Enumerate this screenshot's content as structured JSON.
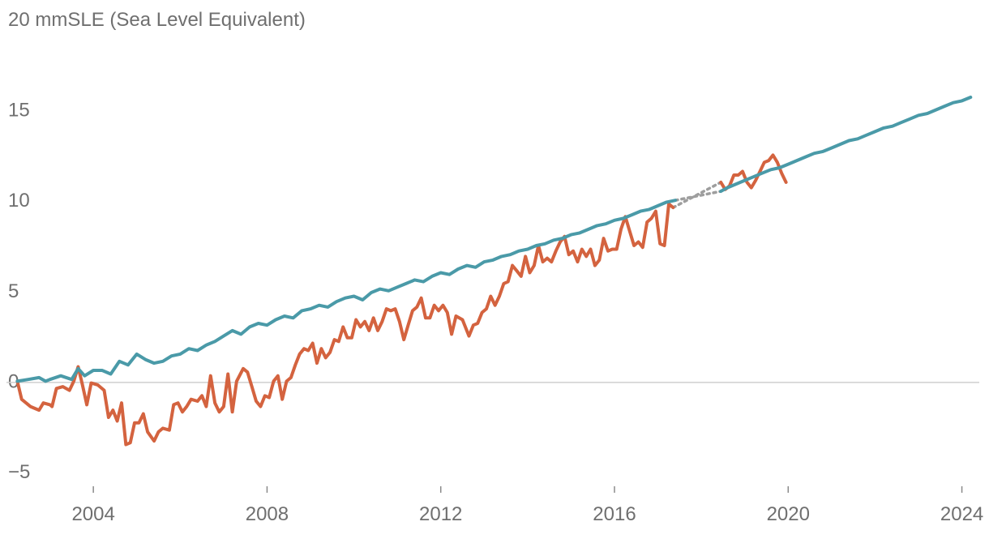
{
  "chart_data": {
    "type": "line",
    "title": "",
    "ylabel": "mmSLE (Sea Level Equivalent)",
    "xlabel": "",
    "xlim": [
      2002.0,
      2024.4
    ],
    "ylim": [
      -5,
      20
    ],
    "yticks": [
      {
        "value": 20,
        "label": "20"
      },
      {
        "value": 15,
        "label": "15"
      },
      {
        "value": 10,
        "label": "10"
      },
      {
        "value": 5,
        "label": "5"
      },
      {
        "value": 0,
        "label": "0"
      },
      {
        "value": -5,
        "label": "−5"
      }
    ],
    "xticks": [
      {
        "value": 2004,
        "label": "2004"
      },
      {
        "value": 2008,
        "label": "2008"
      },
      {
        "value": 2012,
        "label": "2012"
      },
      {
        "value": 2016,
        "label": "2016"
      },
      {
        "value": 2020,
        "label": "2020"
      },
      {
        "value": 2024,
        "label": "2024"
      }
    ],
    "grid": false,
    "legend": "none",
    "gap": {
      "start": 2017.4,
      "end": 2018.45,
      "style": "dotted",
      "color": "#9e9e9e"
    },
    "series": [
      {
        "color": "#d4633f",
        "points": [
          [
            2002.25,
            0.0
          ],
          [
            2002.35,
            -1.0
          ],
          [
            2002.55,
            -1.4
          ],
          [
            2002.75,
            -1.6
          ],
          [
            2002.85,
            -1.2
          ],
          [
            2003.0,
            -1.3
          ],
          [
            2003.05,
            -1.4
          ],
          [
            2003.15,
            -0.4
          ],
          [
            2003.3,
            -0.3
          ],
          [
            2003.45,
            -0.5
          ],
          [
            2003.55,
            0.0
          ],
          [
            2003.65,
            0.8
          ],
          [
            2003.75,
            -0.2
          ],
          [
            2003.85,
            -1.3
          ],
          [
            2003.95,
            -0.1
          ],
          [
            2004.1,
            -0.2
          ],
          [
            2004.25,
            -0.5
          ],
          [
            2004.35,
            -2.0
          ],
          [
            2004.45,
            -1.6
          ],
          [
            2004.55,
            -2.2
          ],
          [
            2004.65,
            -1.2
          ],
          [
            2004.75,
            -3.5
          ],
          [
            2004.85,
            -3.4
          ],
          [
            2004.95,
            -2.3
          ],
          [
            2005.05,
            -2.3
          ],
          [
            2005.15,
            -1.8
          ],
          [
            2005.25,
            -2.8
          ],
          [
            2005.4,
            -3.3
          ],
          [
            2005.5,
            -2.8
          ],
          [
            2005.6,
            -2.6
          ],
          [
            2005.75,
            -2.7
          ],
          [
            2005.85,
            -1.3
          ],
          [
            2005.95,
            -1.2
          ],
          [
            2006.05,
            -1.7
          ],
          [
            2006.15,
            -1.4
          ],
          [
            2006.25,
            -1.0
          ],
          [
            2006.4,
            -1.1
          ],
          [
            2006.5,
            -0.8
          ],
          [
            2006.6,
            -1.4
          ],
          [
            2006.7,
            0.3
          ],
          [
            2006.8,
            -1.2
          ],
          [
            2006.9,
            -1.7
          ],
          [
            2007.0,
            -1.4
          ],
          [
            2007.1,
            0.4
          ],
          [
            2007.2,
            -1.7
          ],
          [
            2007.3,
            0.0
          ],
          [
            2007.45,
            0.7
          ],
          [
            2007.55,
            0.5
          ],
          [
            2007.65,
            -0.3
          ],
          [
            2007.75,
            -1.1
          ],
          [
            2007.85,
            -1.4
          ],
          [
            2007.95,
            -0.8
          ],
          [
            2008.05,
            -0.9
          ],
          [
            2008.15,
            0.0
          ],
          [
            2008.25,
            0.3
          ],
          [
            2008.35,
            -1.0
          ],
          [
            2008.45,
            0.0
          ],
          [
            2008.55,
            0.2
          ],
          [
            2008.65,
            0.9
          ],
          [
            2008.75,
            1.5
          ],
          [
            2008.85,
            1.8
          ],
          [
            2008.95,
            1.7
          ],
          [
            2009.05,
            2.1
          ],
          [
            2009.15,
            1.0
          ],
          [
            2009.25,
            1.8
          ],
          [
            2009.35,
            1.3
          ],
          [
            2009.45,
            1.6
          ],
          [
            2009.55,
            2.3
          ],
          [
            2009.65,
            2.2
          ],
          [
            2009.75,
            3.0
          ],
          [
            2009.85,
            2.4
          ],
          [
            2009.95,
            2.4
          ],
          [
            2010.05,
            3.4
          ],
          [
            2010.15,
            3.0
          ],
          [
            2010.25,
            3.3
          ],
          [
            2010.35,
            2.8
          ],
          [
            2010.45,
            3.5
          ],
          [
            2010.55,
            2.8
          ],
          [
            2010.65,
            3.3
          ],
          [
            2010.75,
            4.0
          ],
          [
            2010.85,
            3.9
          ],
          [
            2010.95,
            4.0
          ],
          [
            2011.05,
            3.3
          ],
          [
            2011.15,
            2.3
          ],
          [
            2011.25,
            3.1
          ],
          [
            2011.35,
            3.9
          ],
          [
            2011.45,
            4.1
          ],
          [
            2011.55,
            4.6
          ],
          [
            2011.65,
            3.5
          ],
          [
            2011.75,
            3.5
          ],
          [
            2011.85,
            4.2
          ],
          [
            2011.95,
            3.9
          ],
          [
            2012.05,
            4.2
          ],
          [
            2012.15,
            3.8
          ],
          [
            2012.25,
            2.6
          ],
          [
            2012.35,
            3.6
          ],
          [
            2012.5,
            3.4
          ],
          [
            2012.65,
            2.5
          ],
          [
            2012.75,
            3.1
          ],
          [
            2012.85,
            3.2
          ],
          [
            2012.95,
            3.8
          ],
          [
            2013.05,
            4.0
          ],
          [
            2013.15,
            4.7
          ],
          [
            2013.25,
            4.2
          ],
          [
            2013.35,
            4.7
          ],
          [
            2013.45,
            5.4
          ],
          [
            2013.55,
            5.5
          ],
          [
            2013.65,
            6.4
          ],
          [
            2013.75,
            6.1
          ],
          [
            2013.85,
            5.8
          ],
          [
            2013.95,
            6.9
          ],
          [
            2014.05,
            6.0
          ],
          [
            2014.15,
            6.4
          ],
          [
            2014.25,
            7.5
          ],
          [
            2014.35,
            6.6
          ],
          [
            2014.45,
            6.8
          ],
          [
            2014.55,
            6.6
          ],
          [
            2014.65,
            7.2
          ],
          [
            2014.75,
            7.7
          ],
          [
            2014.85,
            8.0
          ],
          [
            2014.95,
            7.0
          ],
          [
            2015.05,
            7.2
          ],
          [
            2015.15,
            6.6
          ],
          [
            2015.25,
            7.3
          ],
          [
            2015.35,
            6.9
          ],
          [
            2015.45,
            7.3
          ],
          [
            2015.55,
            6.4
          ],
          [
            2015.65,
            6.7
          ],
          [
            2015.75,
            7.9
          ],
          [
            2015.85,
            7.2
          ],
          [
            2015.95,
            7.3
          ],
          [
            2016.05,
            7.3
          ],
          [
            2016.15,
            8.4
          ],
          [
            2016.25,
            9.1
          ],
          [
            2016.35,
            8.3
          ],
          [
            2016.45,
            7.5
          ],
          [
            2016.55,
            7.7
          ],
          [
            2016.65,
            7.4
          ],
          [
            2016.75,
            8.8
          ],
          [
            2016.85,
            9.0
          ],
          [
            2016.95,
            9.4
          ],
          [
            2017.05,
            7.6
          ],
          [
            2017.15,
            7.5
          ],
          [
            2017.25,
            9.8
          ],
          [
            2017.35,
            9.6
          ],
          [
            2017.45,
            9.1
          ],
          [
            2017.55,
            9.1
          ],
          [
            2017.65,
            9.7
          ],
          [
            2017.75,
            9.1
          ],
          [
            2017.85,
            9.9
          ],
          [
            2017.95,
            9.7
          ],
          [
            2018.05,
            10.3
          ],
          [
            2018.15,
            10.8
          ],
          [
            2018.25,
            10.0
          ],
          [
            2018.35,
            11.1
          ],
          [
            2018.45,
            11.0
          ],
          [
            2018.55,
            10.6
          ],
          [
            2018.65,
            10.8
          ],
          [
            2018.75,
            11.4
          ],
          [
            2018.85,
            11.4
          ],
          [
            2018.95,
            11.6
          ],
          [
            2019.05,
            11.0
          ],
          [
            2019.15,
            10.7
          ],
          [
            2019.25,
            11.1
          ],
          [
            2019.35,
            11.6
          ],
          [
            2019.45,
            12.1
          ],
          [
            2019.55,
            12.2
          ],
          [
            2019.65,
            12.5
          ],
          [
            2019.75,
            12.1
          ],
          [
            2019.85,
            11.5
          ],
          [
            2019.95,
            11.0
          ]
        ]
      },
      {
        "color": "#4a9aa8",
        "points": [
          [
            2002.25,
            0.0
          ],
          [
            2002.5,
            0.1
          ],
          [
            2002.75,
            0.2
          ],
          [
            2002.9,
            0.0
          ],
          [
            2003.0,
            0.1
          ],
          [
            2003.25,
            0.3
          ],
          [
            2003.5,
            0.1
          ],
          [
            2003.65,
            0.7
          ],
          [
            2003.8,
            0.3
          ],
          [
            2004.0,
            0.6
          ],
          [
            2004.2,
            0.6
          ],
          [
            2004.4,
            0.4
          ],
          [
            2004.6,
            1.1
          ],
          [
            2004.8,
            0.9
          ],
          [
            2005.0,
            1.5
          ],
          [
            2005.2,
            1.2
          ],
          [
            2005.4,
            1.0
          ],
          [
            2005.6,
            1.1
          ],
          [
            2005.8,
            1.4
          ],
          [
            2006.0,
            1.5
          ],
          [
            2006.2,
            1.8
          ],
          [
            2006.4,
            1.7
          ],
          [
            2006.6,
            2.0
          ],
          [
            2006.8,
            2.2
          ],
          [
            2007.0,
            2.5
          ],
          [
            2007.2,
            2.8
          ],
          [
            2007.4,
            2.6
          ],
          [
            2007.6,
            3.0
          ],
          [
            2007.8,
            3.2
          ],
          [
            2008.0,
            3.1
          ],
          [
            2008.2,
            3.4
          ],
          [
            2008.4,
            3.6
          ],
          [
            2008.6,
            3.5
          ],
          [
            2008.8,
            3.9
          ],
          [
            2009.0,
            4.0
          ],
          [
            2009.2,
            4.2
          ],
          [
            2009.4,
            4.1
          ],
          [
            2009.6,
            4.4
          ],
          [
            2009.8,
            4.6
          ],
          [
            2010.0,
            4.7
          ],
          [
            2010.2,
            4.5
          ],
          [
            2010.4,
            4.9
          ],
          [
            2010.6,
            5.1
          ],
          [
            2010.8,
            5.0
          ],
          [
            2011.0,
            5.2
          ],
          [
            2011.2,
            5.4
          ],
          [
            2011.4,
            5.6
          ],
          [
            2011.6,
            5.5
          ],
          [
            2011.8,
            5.8
          ],
          [
            2012.0,
            6.0
          ],
          [
            2012.2,
            5.9
          ],
          [
            2012.4,
            6.2
          ],
          [
            2012.6,
            6.4
          ],
          [
            2012.8,
            6.3
          ],
          [
            2013.0,
            6.6
          ],
          [
            2013.2,
            6.7
          ],
          [
            2013.4,
            6.9
          ],
          [
            2013.6,
            7.0
          ],
          [
            2013.8,
            7.2
          ],
          [
            2014.0,
            7.3
          ],
          [
            2014.2,
            7.5
          ],
          [
            2014.4,
            7.6
          ],
          [
            2014.6,
            7.8
          ],
          [
            2014.8,
            7.9
          ],
          [
            2015.0,
            8.1
          ],
          [
            2015.2,
            8.2
          ],
          [
            2015.4,
            8.4
          ],
          [
            2015.6,
            8.6
          ],
          [
            2015.8,
            8.7
          ],
          [
            2016.0,
            8.9
          ],
          [
            2016.2,
            9.0
          ],
          [
            2016.4,
            9.2
          ],
          [
            2016.6,
            9.4
          ],
          [
            2016.8,
            9.5
          ],
          [
            2017.0,
            9.7
          ],
          [
            2017.2,
            9.9
          ],
          [
            2017.4,
            10.0
          ],
          [
            2018.45,
            10.5
          ],
          [
            2018.6,
            10.7
          ],
          [
            2018.8,
            10.9
          ],
          [
            2019.0,
            11.1
          ],
          [
            2019.2,
            11.3
          ],
          [
            2019.4,
            11.5
          ],
          [
            2019.6,
            11.7
          ],
          [
            2019.8,
            11.8
          ],
          [
            2020.0,
            12.0
          ],
          [
            2020.2,
            12.2
          ],
          [
            2020.4,
            12.4
          ],
          [
            2020.6,
            12.6
          ],
          [
            2020.8,
            12.7
          ],
          [
            2021.0,
            12.9
          ],
          [
            2021.2,
            13.1
          ],
          [
            2021.4,
            13.3
          ],
          [
            2021.6,
            13.4
          ],
          [
            2021.8,
            13.6
          ],
          [
            2022.0,
            13.8
          ],
          [
            2022.2,
            14.0
          ],
          [
            2022.4,
            14.1
          ],
          [
            2022.6,
            14.3
          ],
          [
            2022.8,
            14.5
          ],
          [
            2023.0,
            14.7
          ],
          [
            2023.2,
            14.8
          ],
          [
            2023.4,
            15.0
          ],
          [
            2023.6,
            15.2
          ],
          [
            2023.8,
            15.4
          ],
          [
            2024.0,
            15.5
          ],
          [
            2024.2,
            15.7
          ]
        ]
      }
    ]
  }
}
